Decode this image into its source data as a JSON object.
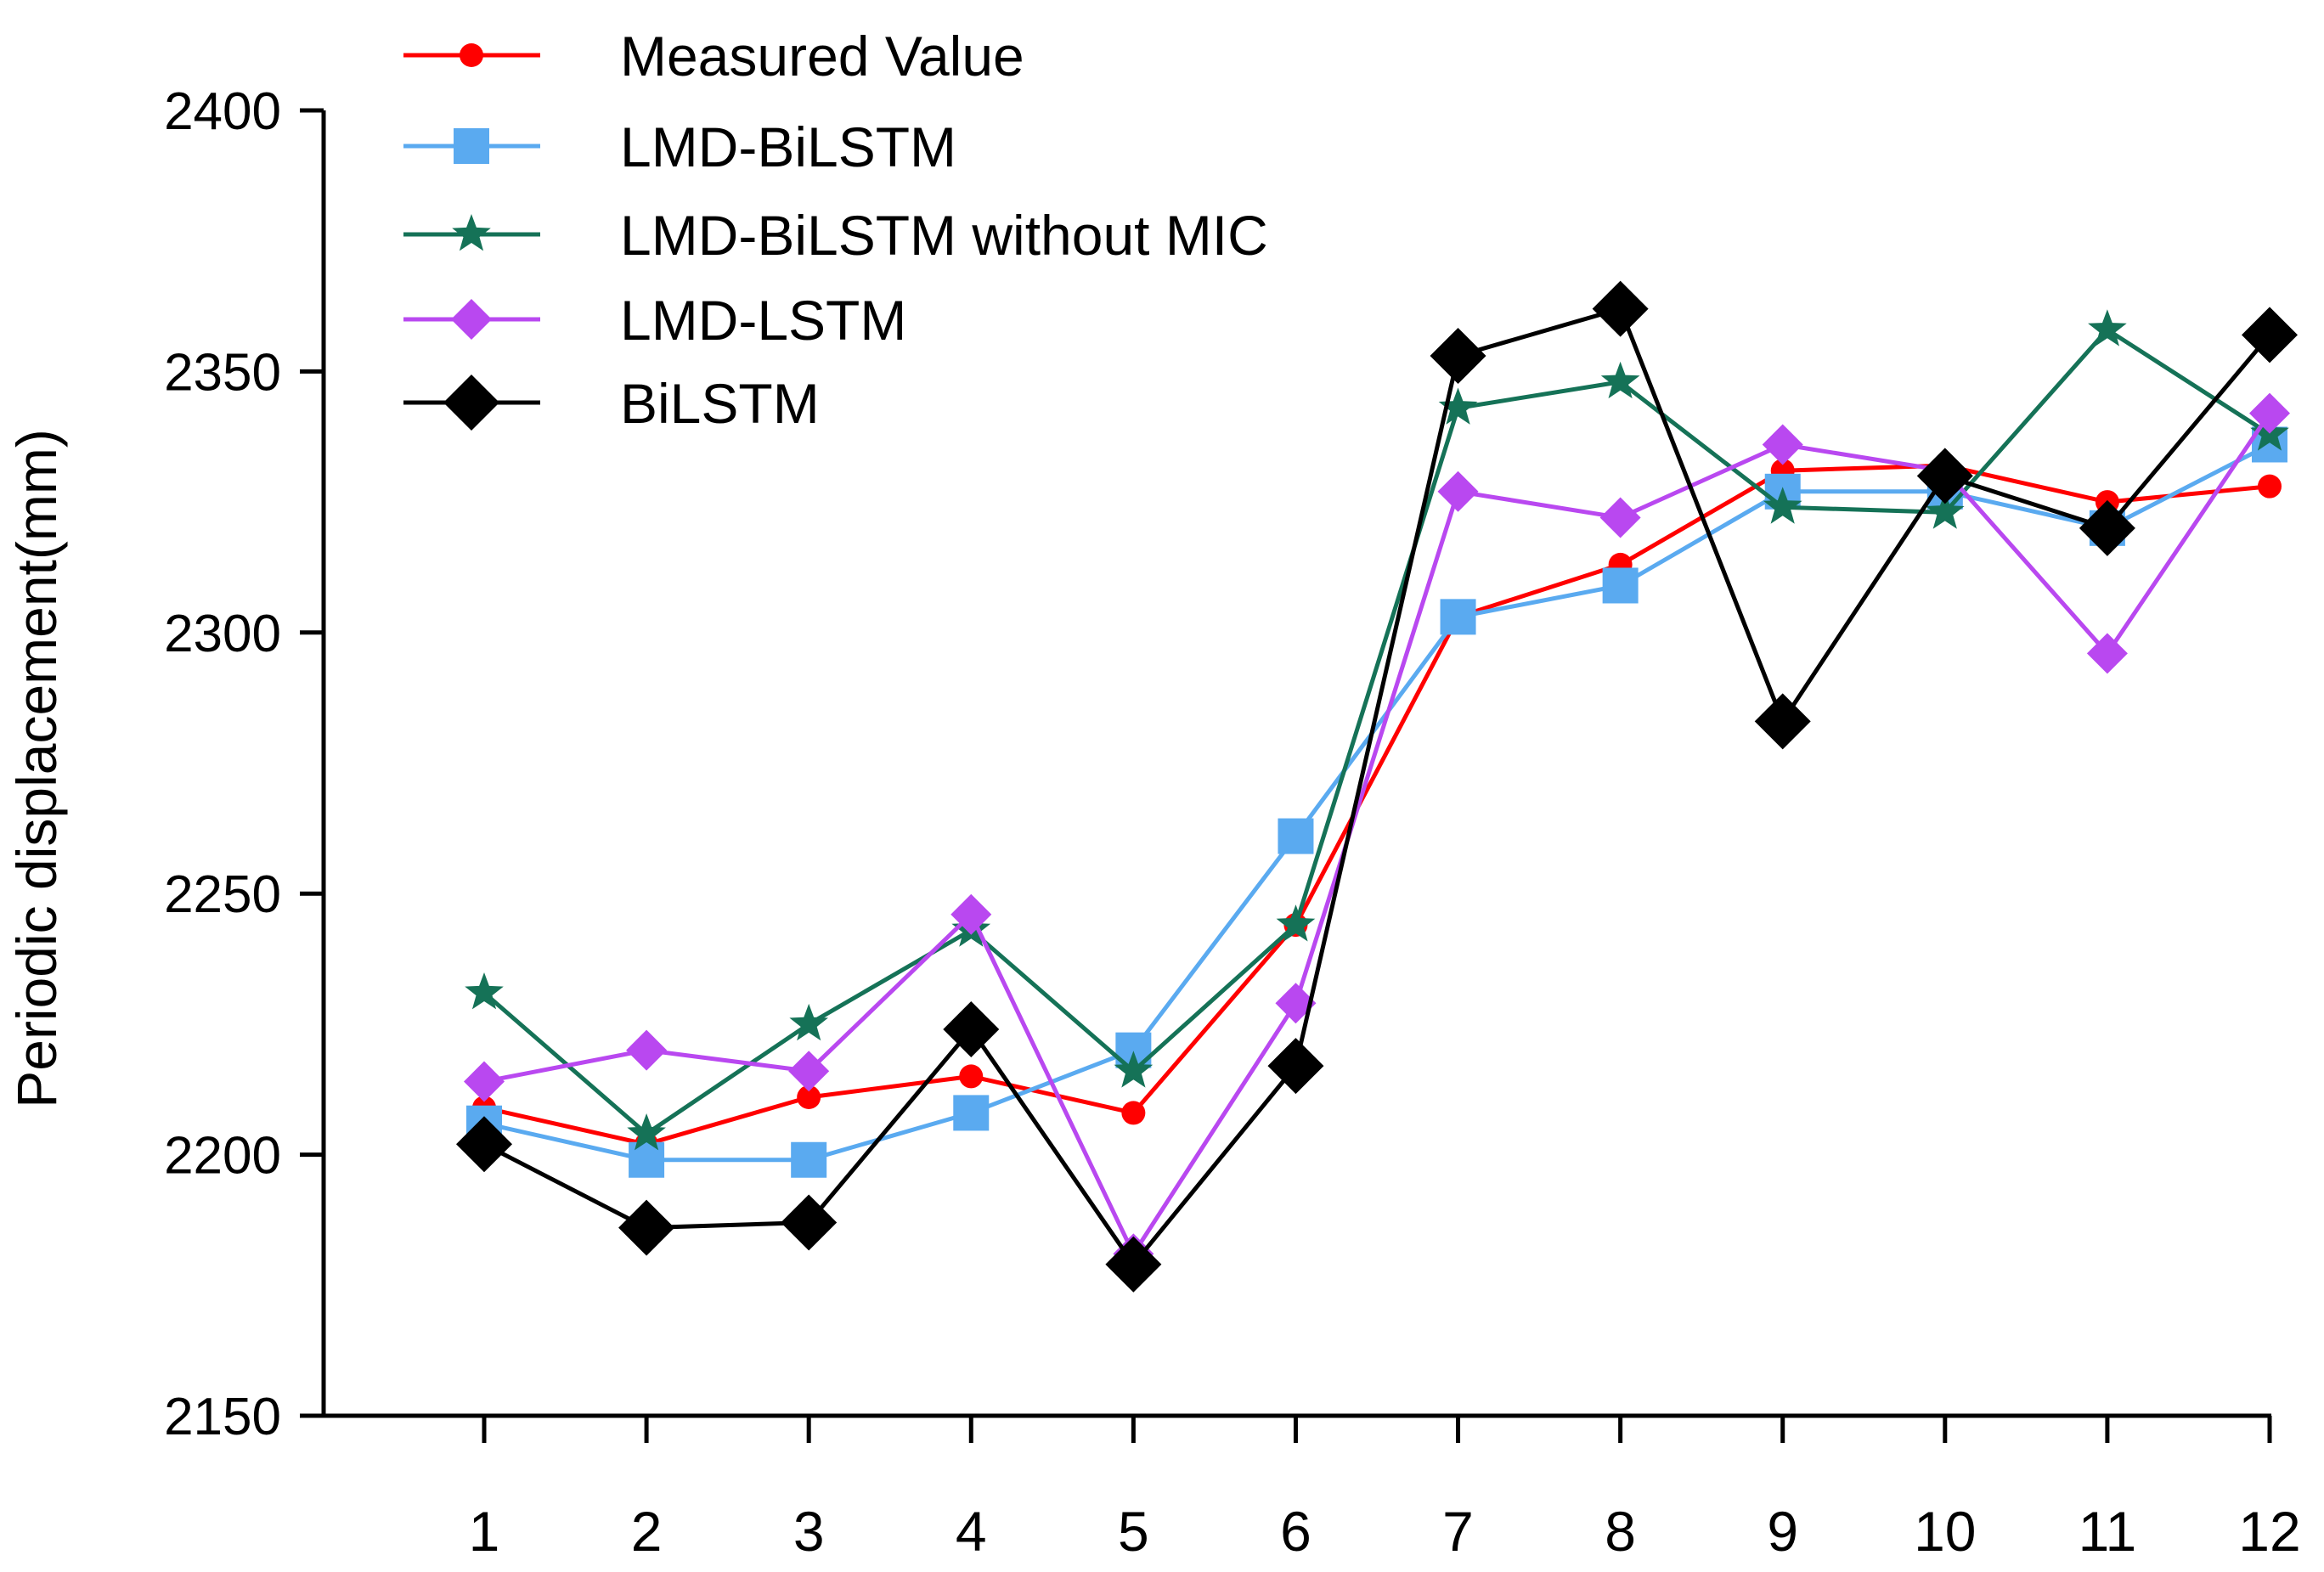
{
  "chart_data": {
    "type": "line",
    "title": "",
    "xlabel": "",
    "ylabel": "Periodic displacement(mm)",
    "x": [
      1,
      2,
      3,
      4,
      5,
      6,
      7,
      8,
      9,
      10,
      11,
      12
    ],
    "xticks": [
      "1",
      "2",
      "3",
      "4",
      "5",
      "6",
      "7",
      "8",
      "9",
      "10",
      "11",
      "12"
    ],
    "ylim": [
      2150,
      2400
    ],
    "yticks": [
      "2150",
      "2200",
      "2250",
      "2300",
      "2350",
      "2400"
    ],
    "grid": false,
    "legend_position": "top-left",
    "series": [
      {
        "name": "Measured Value",
        "color": "#ff0000",
        "marker": "circle",
        "values": [
          2209,
          2202,
          2211,
          2215,
          2208,
          2244,
          2303,
          2313,
          2331,
          2332,
          2325,
          2328
        ]
      },
      {
        "name": "LMD-BiLSTM",
        "color": "#5aaaf0",
        "marker": "square",
        "values": [
          2206,
          2199,
          2199,
          2208,
          2220,
          2261,
          2303,
          2309,
          2327,
          2327,
          2320,
          2336
        ]
      },
      {
        "name": "LMD-BiLSTM without MIC",
        "color": "#157257",
        "marker": "star",
        "values": [
          2231,
          2204,
          2225,
          2243,
          2216,
          2244,
          2343,
          2348,
          2324,
          2323,
          2358,
          2338
        ]
      },
      {
        "name": "LMD-LSTM",
        "color": "#b948f0",
        "marker": "diamond-small",
        "values": [
          2214,
          2220,
          2216,
          2246,
          2181,
          2229,
          2327,
          2322,
          2336,
          2331,
          2296,
          2342
        ]
      },
      {
        "name": "BiLSTM",
        "color": "#000000",
        "marker": "diamond-large",
        "values": [
          2202,
          2186,
          2187,
          2224,
          2179,
          2217,
          2353,
          2362,
          2283,
          2330,
          2320,
          2357
        ]
      }
    ]
  }
}
